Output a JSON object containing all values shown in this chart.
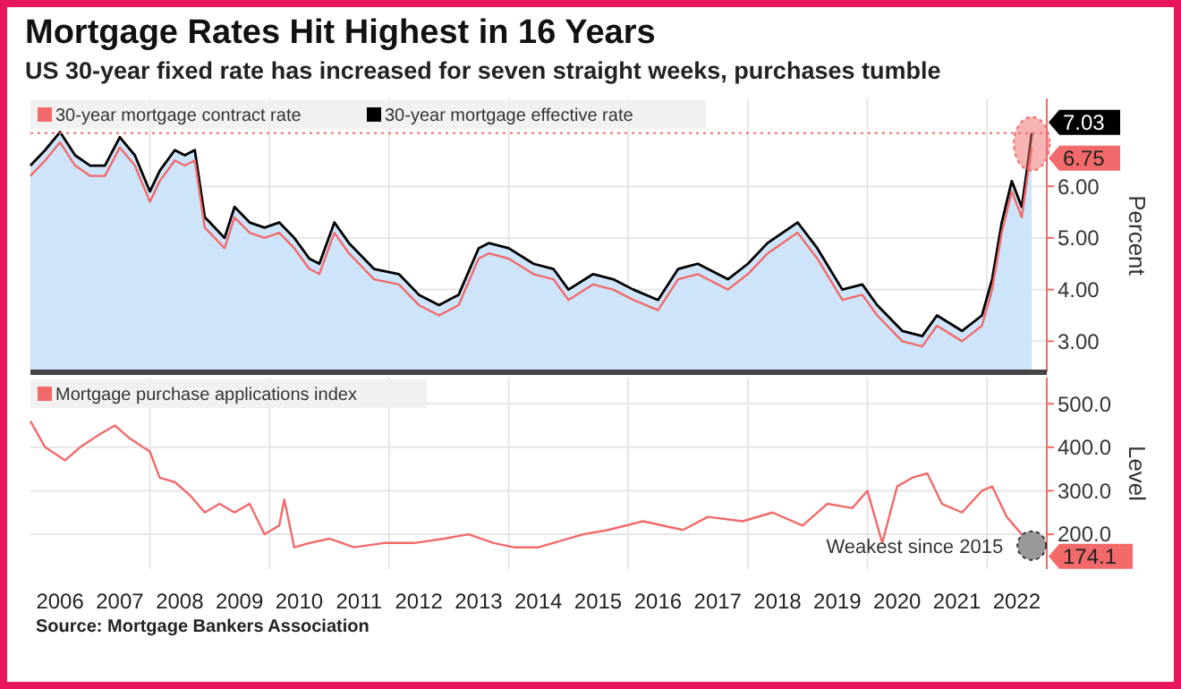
{
  "chart_data": [
    {
      "type": "line",
      "title": "Mortgage Rates Hit Highest in 16 Years",
      "subtitle": "US 30-year fixed rate has increased for seven straight weeks, purchases tumble",
      "ylabel": "Percent",
      "legend": "top left",
      "grid": true,
      "tick_labels": "y",
      "xlim": [
        "2006-01",
        "2023-01"
      ],
      "ylim": [
        2.4,
        7.7
      ],
      "yticks": [
        {
          "value": 3,
          "label": "3.00"
        },
        {
          "value": 4,
          "label": "4.00"
        },
        {
          "value": 5,
          "label": "5.00"
        },
        {
          "value": 6,
          "label": "6.00"
        }
      ],
      "xticks": [
        {
          "value": "2008-01",
          "label": null
        },
        {
          "value": "2010-01",
          "label": null
        },
        {
          "value": "2012-01",
          "label": null
        },
        {
          "value": "2014-01",
          "label": null
        },
        {
          "value": "2016-01",
          "label": null
        },
        {
          "value": "2018-01",
          "label": null
        },
        {
          "value": "2020-01",
          "label": null
        },
        {
          "value": "2022-01",
          "label": null
        }
      ],
      "ref_lines": [
        {
          "axis": "y",
          "value": 7.03,
          "color": "#f26a6a",
          "line_style": "dotted"
        }
      ],
      "x": [
        "2006-01",
        "2006-04",
        "2006-07",
        "2006-10",
        "2007-01",
        "2007-04",
        "2007-07",
        "2007-10",
        "2008-01",
        "2008-03",
        "2008-06",
        "2008-08",
        "2008-10",
        "2008-12",
        "2009-01",
        "2009-04",
        "2009-06",
        "2009-09",
        "2009-12",
        "2010-03",
        "2010-06",
        "2010-09",
        "2010-11",
        "2011-02",
        "2011-05",
        "2011-08",
        "2011-10",
        "2012-03",
        "2012-07",
        "2012-11",
        "2013-03",
        "2013-07",
        "2013-09",
        "2014-01",
        "2014-06",
        "2014-10",
        "2015-01",
        "2015-06",
        "2015-10",
        "2016-02",
        "2016-07",
        "2016-11",
        "2017-03",
        "2017-09",
        "2018-01",
        "2018-05",
        "2018-11",
        "2019-03",
        "2019-08",
        "2019-12",
        "2020-03",
        "2020-08",
        "2020-12",
        "2021-03",
        "2021-08",
        "2021-12",
        "2022-02",
        "2022-04",
        "2022-06",
        "2022-08",
        "2022-09",
        "2022-10"
      ],
      "series": [
        {
          "name": "30-year mortgage effective rate",
          "type": "area",
          "color": "#000000",
          "values": [
            6.4,
            6.7,
            7.05,
            6.6,
            6.4,
            6.4,
            6.95,
            6.6,
            5.9,
            6.3,
            6.7,
            6.6,
            6.7,
            5.4,
            5.3,
            5.0,
            5.6,
            5.3,
            5.2,
            5.3,
            5.0,
            4.6,
            4.5,
            5.3,
            4.9,
            4.6,
            4.4,
            4.3,
            3.9,
            3.7,
            3.9,
            4.8,
            4.9,
            4.8,
            4.5,
            4.4,
            4.0,
            4.3,
            4.2,
            4.0,
            3.8,
            4.4,
            4.5,
            4.2,
            4.5,
            4.9,
            5.3,
            4.8,
            4.0,
            4.1,
            3.7,
            3.2,
            3.1,
            3.5,
            3.2,
            3.5,
            4.2,
            5.3,
            6.1,
            5.6,
            6.3,
            7.03
          ],
          "value_labels": [
            null,
            null,
            null,
            null,
            null,
            null,
            null,
            null,
            null,
            null,
            null,
            null,
            null,
            null,
            null,
            null,
            null,
            null,
            null,
            null,
            null,
            null,
            null,
            null,
            null,
            null,
            null,
            null,
            null,
            null,
            null,
            null,
            null,
            null,
            null,
            null,
            null,
            null,
            null,
            null,
            null,
            null,
            null,
            null,
            null,
            null,
            null,
            null,
            null,
            null,
            null,
            null,
            null,
            null,
            null,
            null,
            null,
            null,
            null,
            null,
            null,
            "7.03"
          ]
        },
        {
          "name": "30-year mortgage contract rate",
          "type": "line",
          "color": "#f26a6a",
          "values": [
            6.2,
            6.5,
            6.85,
            6.4,
            6.2,
            6.2,
            6.75,
            6.4,
            5.7,
            6.1,
            6.5,
            6.4,
            6.5,
            5.2,
            5.1,
            4.8,
            5.4,
            5.1,
            5.0,
            5.1,
            4.8,
            4.4,
            4.3,
            5.1,
            4.7,
            4.4,
            4.2,
            4.1,
            3.7,
            3.5,
            3.7,
            4.6,
            4.7,
            4.6,
            4.3,
            4.2,
            3.8,
            4.1,
            4.0,
            3.8,
            3.6,
            4.2,
            4.3,
            4.0,
            4.3,
            4.7,
            5.1,
            4.6,
            3.8,
            3.9,
            3.5,
            3.0,
            2.9,
            3.3,
            3.0,
            3.3,
            4.0,
            5.1,
            5.9,
            5.4,
            6.1,
            6.75
          ],
          "value_labels": [
            null,
            null,
            null,
            null,
            null,
            null,
            null,
            null,
            null,
            null,
            null,
            null,
            null,
            null,
            null,
            null,
            null,
            null,
            null,
            null,
            null,
            null,
            null,
            null,
            null,
            null,
            null,
            null,
            null,
            null,
            null,
            null,
            null,
            null,
            null,
            null,
            null,
            null,
            null,
            null,
            null,
            null,
            null,
            null,
            null,
            null,
            null,
            null,
            null,
            null,
            null,
            null,
            null,
            null,
            null,
            null,
            null,
            null,
            null,
            null,
            null,
            "6.75"
          ]
        }
      ]
    },
    {
      "type": "line",
      "ylabel": "Level",
      "legend": "top left",
      "grid": true,
      "xlim": [
        "2006-01",
        "2023-01"
      ],
      "ylim": [
        120,
        560
      ],
      "yticks": [
        {
          "value": 200,
          "label": "200.0"
        },
        {
          "value": 300,
          "label": "300.0"
        },
        {
          "value": 400,
          "label": "400.0"
        },
        {
          "value": 500,
          "label": "500.0"
        }
      ],
      "xticks": [
        {
          "value": "2006-07",
          "label": "2006"
        },
        {
          "value": "2007-07",
          "label": "2007"
        },
        {
          "value": "2008-01",
          "label": null
        },
        {
          "value": "2008-07",
          "label": "2008"
        },
        {
          "value": "2009-07",
          "label": "2009"
        },
        {
          "value": "2010-01",
          "label": null
        },
        {
          "value": "2010-07",
          "label": "2010"
        },
        {
          "value": "2011-07",
          "label": "2011"
        },
        {
          "value": "2012-01",
          "label": null
        },
        {
          "value": "2012-07",
          "label": "2012"
        },
        {
          "value": "2013-07",
          "label": "2013"
        },
        {
          "value": "2014-01",
          "label": null
        },
        {
          "value": "2014-07",
          "label": "2014"
        },
        {
          "value": "2015-07",
          "label": "2015"
        },
        {
          "value": "2016-01",
          "label": null
        },
        {
          "value": "2016-07",
          "label": "2016"
        },
        {
          "value": "2017-07",
          "label": "2017"
        },
        {
          "value": "2018-01",
          "label": null
        },
        {
          "value": "2018-07",
          "label": "2018"
        },
        {
          "value": "2019-07",
          "label": "2019"
        },
        {
          "value": "2020-01",
          "label": null
        },
        {
          "value": "2020-07",
          "label": "2020"
        },
        {
          "value": "2021-07",
          "label": "2021"
        },
        {
          "value": "2022-01",
          "label": null
        },
        {
          "value": "2022-07",
          "label": "2022"
        }
      ],
      "annotations": [
        {
          "text": "Weakest since 2015",
          "x": "2022-10",
          "y": 174.1
        },
        "Source: Mortgage Bankers Association"
      ],
      "x": [
        "2006-01",
        "2006-04",
        "2006-08",
        "2006-11",
        "2007-03",
        "2007-06",
        "2007-09",
        "2008-01",
        "2008-03",
        "2008-06",
        "2008-09",
        "2008-12",
        "2009-03",
        "2009-06",
        "2009-09",
        "2009-12",
        "2010-03",
        "2010-04",
        "2010-06",
        "2010-09",
        "2011-01",
        "2011-06",
        "2011-12",
        "2012-06",
        "2012-12",
        "2013-05",
        "2013-10",
        "2014-02",
        "2014-07",
        "2015-01",
        "2015-04",
        "2015-09",
        "2016-04",
        "2016-12",
        "2017-05",
        "2017-12",
        "2018-06",
        "2018-12",
        "2019-05",
        "2019-10",
        "2020-01",
        "2020-04",
        "2020-07",
        "2020-10",
        "2021-01",
        "2021-04",
        "2021-08",
        "2021-12",
        "2022-02",
        "2022-05",
        "2022-08",
        "2022-10"
      ],
      "series": [
        {
          "name": "Mortgage purchase applications index",
          "type": "line",
          "color": "#f26a6a",
          "values": [
            460,
            400,
            370,
            400,
            430,
            450,
            420,
            390,
            330,
            320,
            290,
            250,
            270,
            250,
            270,
            200,
            220,
            280,
            170,
            180,
            190,
            170,
            180,
            180,
            190,
            200,
            180,
            170,
            170,
            190,
            200,
            210,
            230,
            210,
            240,
            230,
            250,
            220,
            270,
            260,
            300,
            180,
            310,
            330,
            340,
            270,
            250,
            300,
            310,
            240,
            200,
            174.1
          ],
          "value_labels": [
            null,
            null,
            null,
            null,
            null,
            null,
            null,
            null,
            null,
            null,
            null,
            null,
            null,
            null,
            null,
            null,
            null,
            null,
            null,
            null,
            null,
            null,
            null,
            null,
            null,
            null,
            null,
            null,
            null,
            null,
            null,
            null,
            null,
            null,
            null,
            null,
            null,
            null,
            null,
            null,
            null,
            null,
            null,
            null,
            null,
            null,
            null,
            null,
            null,
            null,
            null,
            "174.1"
          ]
        }
      ]
    }
  ]
}
